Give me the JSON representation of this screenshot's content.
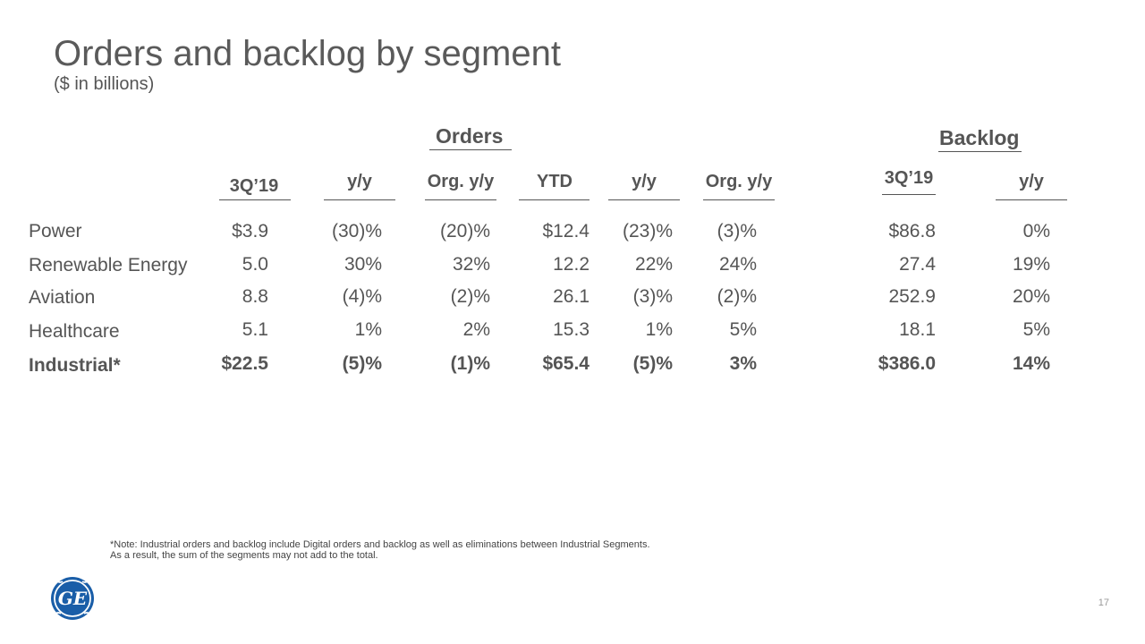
{
  "header": {
    "title": "Orders and backlog by segment",
    "subtitle": "($ in billions)"
  },
  "groups": {
    "orders": "Orders",
    "backlog": "Backlog"
  },
  "columns": [
    "3Q’19",
    "y/y",
    "Org. y/y",
    "YTD",
    "y/y",
    "Org. y/y",
    "3Q’19",
    "y/y"
  ],
  "rows": [
    {
      "label": "Power",
      "values": [
        "$3.9",
        "(30)%",
        "(20)%",
        "$12.4",
        "(23)%",
        "(3)%",
        "$86.8",
        "0%"
      ]
    },
    {
      "label": "Renewable Energy",
      "values": [
        "5.0",
        "30%",
        "32%",
        "12.2",
        "22%",
        "24%",
        "27.4",
        "19%"
      ]
    },
    {
      "label": "Aviation",
      "values": [
        "8.8",
        "(4)%",
        "(2)%",
        "26.1",
        "(3)%",
        "(2)%",
        "252.9",
        "20%"
      ]
    },
    {
      "label": "Healthcare",
      "values": [
        "5.1",
        "1%",
        "2%",
        "15.3",
        "1%",
        "5%",
        "18.1",
        "5%"
      ]
    },
    {
      "label": "Industrial*",
      "values": [
        "$22.5",
        "(5)%",
        "(1)%",
        "$65.4",
        "(5)%",
        "3%",
        "$386.0",
        "14%"
      ]
    }
  ],
  "footnote": {
    "line1": "*Note: Industrial orders and backlog include Digital orders and backlog as well as eliminations between Industrial Segments.",
    "line2": "As a result, the sum of the segments may not add to the total."
  },
  "page_number": "17",
  "logo": {
    "name": "ge-logo",
    "text": "GE",
    "color": "#1a5ea8"
  }
}
